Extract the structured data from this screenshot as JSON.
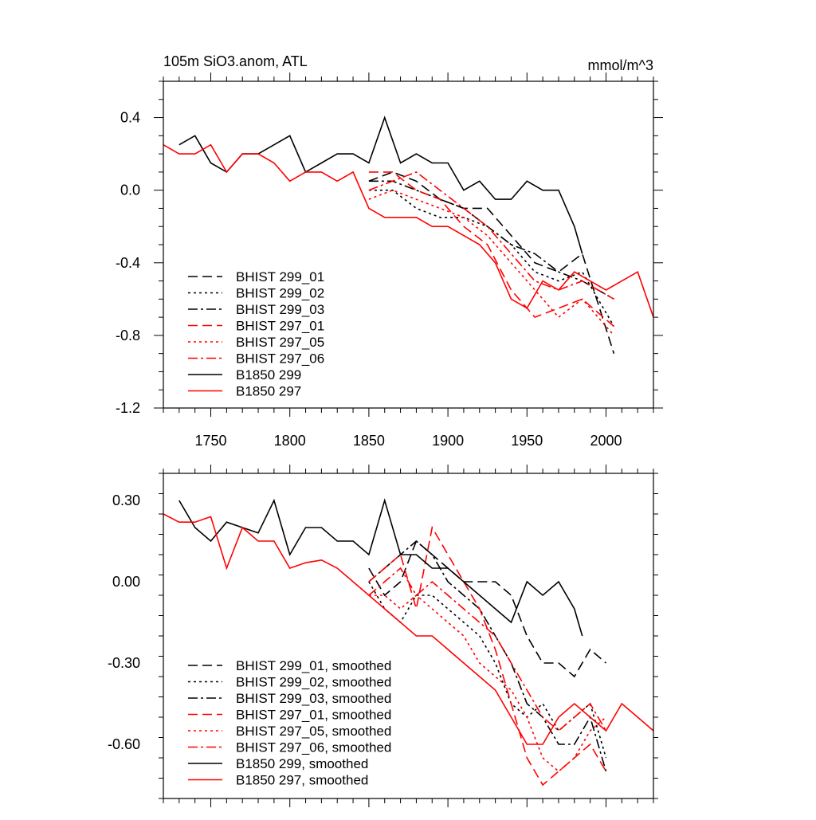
{
  "chart_data": [
    {
      "type": "line",
      "title_left": "105m SiO3.anom, ATL",
      "title_right": "mmol/m^3",
      "xlim": [
        1720,
        2030
      ],
      "ylim": [
        -1.2,
        0.6
      ],
      "xticks": [
        1750,
        1800,
        1850,
        1900,
        1950,
        2000
      ],
      "xtick_labels": [
        "1750",
        "1800",
        "1850",
        "1900",
        "1950",
        "2000"
      ],
      "yticks": [
        0.4,
        0.0,
        -0.4,
        -0.8,
        -1.2
      ],
      "ytick_labels": [
        "0.4",
        "0.0",
        "-0.4",
        "-0.8",
        "-1.2"
      ],
      "legend_position": "bottom-left",
      "series": [
        {
          "name": "BHIST 299_01",
          "color": "#000000",
          "dash": "dash",
          "x": [
            1850,
            1865,
            1880,
            1895,
            1910,
            1925,
            1940,
            1955,
            1970,
            1985,
            2005
          ],
          "y": [
            0.05,
            0.1,
            0.05,
            -0.05,
            -0.1,
            -0.1,
            -0.25,
            -0.4,
            -0.45,
            -0.35,
            -0.9
          ]
        },
        {
          "name": "BHIST 299_02",
          "color": "#000000",
          "dash": "dot",
          "x": [
            1850,
            1865,
            1880,
            1895,
            1910,
            1925,
            1940,
            1955,
            1970,
            1985,
            2005
          ],
          "y": [
            0.0,
            0.0,
            -0.1,
            -0.15,
            -0.15,
            -0.2,
            -0.3,
            -0.45,
            -0.5,
            -0.45,
            -0.75
          ]
        },
        {
          "name": "BHIST 299_03",
          "color": "#000000",
          "dash": "dashdot",
          "x": [
            1850,
            1865,
            1880,
            1895,
            1910,
            1925,
            1940,
            1955,
            1970,
            1985,
            2005
          ],
          "y": [
            0.05,
            0.05,
            0.0,
            -0.05,
            -0.1,
            -0.2,
            -0.3,
            -0.35,
            -0.45,
            -0.5,
            -0.6
          ]
        },
        {
          "name": "BHIST 297_01",
          "color": "#ff0000",
          "dash": "dash",
          "x": [
            1850,
            1865,
            1880,
            1895,
            1910,
            1925,
            1940,
            1955,
            1970,
            1985,
            2005
          ],
          "y": [
            0.1,
            0.1,
            0.0,
            -0.05,
            -0.2,
            -0.3,
            -0.55,
            -0.7,
            -0.65,
            -0.6,
            -0.75
          ]
        },
        {
          "name": "BHIST 297_05",
          "color": "#ff0000",
          "dash": "dot",
          "x": [
            1850,
            1865,
            1880,
            1895,
            1910,
            1925,
            1940,
            1955,
            1970,
            1985,
            2005
          ],
          "y": [
            -0.05,
            0.0,
            -0.05,
            -0.1,
            -0.15,
            -0.25,
            -0.4,
            -0.55,
            -0.7,
            -0.6,
            -0.8
          ]
        },
        {
          "name": "BHIST 297_06",
          "color": "#ff0000",
          "dash": "dashdot",
          "x": [
            1850,
            1865,
            1880,
            1895,
            1910,
            1925,
            1940,
            1955,
            1970,
            1985,
            2005
          ],
          "y": [
            0.0,
            0.05,
            0.1,
            0.0,
            -0.1,
            -0.2,
            -0.35,
            -0.5,
            -0.55,
            -0.5,
            -0.6
          ]
        },
        {
          "name": "B1850 299",
          "color": "#000000",
          "dash": "solid",
          "x": [
            1730,
            1740,
            1750,
            1760,
            1770,
            1780,
            1790,
            1800,
            1810,
            1820,
            1830,
            1840,
            1850,
            1860,
            1870,
            1880,
            1890,
            1900,
            1910,
            1920,
            1930,
            1940,
            1950,
            1960,
            1970,
            1980,
            1985
          ],
          "y": [
            0.25,
            0.3,
            0.15,
            0.1,
            0.2,
            0.2,
            0.25,
            0.3,
            0.1,
            0.15,
            0.2,
            0.2,
            0.15,
            0.4,
            0.15,
            0.2,
            0.15,
            0.15,
            0.0,
            0.05,
            -0.05,
            -0.05,
            0.05,
            0.0,
            0.0,
            -0.2,
            -0.35
          ]
        },
        {
          "name": "B1850 297",
          "color": "#ff0000",
          "dash": "solid",
          "x": [
            1720,
            1730,
            1740,
            1750,
            1760,
            1770,
            1780,
            1790,
            1800,
            1810,
            1820,
            1830,
            1840,
            1850,
            1860,
            1870,
            1880,
            1890,
            1900,
            1910,
            1920,
            1930,
            1940,
            1950,
            1960,
            1970,
            1980,
            1990,
            2000,
            2010,
            2020,
            2030
          ],
          "y": [
            0.25,
            0.2,
            0.2,
            0.25,
            0.1,
            0.2,
            0.2,
            0.15,
            0.05,
            0.1,
            0.1,
            0.05,
            0.1,
            -0.1,
            -0.15,
            -0.15,
            -0.15,
            -0.2,
            -0.2,
            -0.25,
            -0.3,
            -0.4,
            -0.6,
            -0.65,
            -0.5,
            -0.55,
            -0.45,
            -0.5,
            -0.55,
            -0.5,
            -0.45,
            -0.7
          ]
        }
      ]
    },
    {
      "type": "line",
      "xlim": [
        1720,
        2030
      ],
      "ylim": [
        -0.8,
        0.4
      ],
      "xticks": [
        1750,
        1800,
        1850,
        1900,
        1950,
        2000
      ],
      "yticks": [
        0.3,
        0.0,
        -0.3,
        -0.6
      ],
      "ytick_labels": [
        "0.30",
        "0.00",
        "-0.30",
        "-0.60"
      ],
      "legend_position": "bottom-left",
      "series": [
        {
          "name": "BHIST 299_01, smoothed",
          "color": "#000000",
          "dash": "dash",
          "x": [
            1850,
            1860,
            1870,
            1880,
            1890,
            1900,
            1910,
            1920,
            1930,
            1940,
            1950,
            1960,
            1970,
            1980,
            1990,
            2000
          ],
          "y": [
            0.05,
            -0.05,
            0.0,
            0.15,
            0.1,
            0.05,
            0.0,
            0.0,
            0.0,
            -0.05,
            -0.2,
            -0.3,
            -0.3,
            -0.35,
            -0.25,
            -0.3
          ]
        },
        {
          "name": "BHIST 299_02, smoothed",
          "color": "#000000",
          "dash": "dot",
          "x": [
            1850,
            1860,
            1870,
            1880,
            1890,
            1900,
            1910,
            1920,
            1930,
            1940,
            1950,
            1960,
            1970,
            1980,
            1990,
            2000
          ],
          "y": [
            0.0,
            -0.1,
            -0.15,
            -0.05,
            -0.05,
            -0.1,
            -0.15,
            -0.2,
            -0.3,
            -0.45,
            -0.5,
            -0.45,
            -0.55,
            -0.5,
            -0.45,
            -0.65
          ]
        },
        {
          "name": "BHIST 299_03, smoothed",
          "color": "#000000",
          "dash": "dashdot",
          "x": [
            1850,
            1860,
            1870,
            1880,
            1890,
            1900,
            1910,
            1920,
            1930,
            1940,
            1950,
            1960,
            1970,
            1980,
            1990,
            2000
          ],
          "y": [
            0.0,
            0.05,
            0.1,
            0.15,
            0.1,
            0.0,
            -0.05,
            -0.1,
            -0.2,
            -0.3,
            -0.45,
            -0.5,
            -0.6,
            -0.6,
            -0.5,
            -0.7
          ]
        },
        {
          "name": "BHIST 297_01, smoothed",
          "color": "#ff0000",
          "dash": "dash",
          "x": [
            1850,
            1860,
            1870,
            1880,
            1890,
            1900,
            1910,
            1920,
            1930,
            1940,
            1950,
            1960,
            1970,
            1980,
            1990,
            2000
          ],
          "y": [
            0.0,
            0.05,
            0.1,
            -0.1,
            0.2,
            0.1,
            0.0,
            -0.1,
            -0.25,
            -0.45,
            -0.65,
            -0.75,
            -0.7,
            -0.65,
            -0.6,
            -0.7
          ]
        },
        {
          "name": "BHIST 297_05, smoothed",
          "color": "#ff0000",
          "dash": "dot",
          "x": [
            1850,
            1860,
            1870,
            1880,
            1890,
            1900,
            1910,
            1920,
            1930,
            1940,
            1950,
            1960,
            1970,
            1980,
            1990,
            2000
          ],
          "y": [
            -0.05,
            -0.05,
            -0.1,
            -0.05,
            -0.1,
            -0.15,
            -0.2,
            -0.3,
            -0.35,
            -0.4,
            -0.5,
            -0.65,
            -0.7,
            -0.65,
            -0.55,
            -0.5
          ]
        },
        {
          "name": "BHIST 297_06, smoothed",
          "color": "#ff0000",
          "dash": "dashdot",
          "x": [
            1850,
            1860,
            1870,
            1880,
            1890,
            1900,
            1910,
            1920,
            1930,
            1940,
            1950,
            1960,
            1970,
            1980,
            1990,
            2000
          ],
          "y": [
            -0.05,
            0.0,
            0.05,
            -0.05,
            0.0,
            -0.05,
            -0.1,
            -0.15,
            -0.2,
            -0.3,
            -0.4,
            -0.5,
            -0.55,
            -0.5,
            -0.45,
            -0.55
          ]
        },
        {
          "name": "B1850 299, smoothed",
          "color": "#000000",
          "dash": "solid",
          "x": [
            1730,
            1740,
            1750,
            1760,
            1770,
            1780,
            1790,
            1800,
            1810,
            1820,
            1830,
            1840,
            1850,
            1860,
            1870,
            1880,
            1890,
            1900,
            1910,
            1920,
            1930,
            1940,
            1950,
            1960,
            1970,
            1980,
            1985
          ],
          "y": [
            0.3,
            0.2,
            0.15,
            0.22,
            0.2,
            0.18,
            0.3,
            0.1,
            0.2,
            0.2,
            0.15,
            0.15,
            0.1,
            0.3,
            0.1,
            0.1,
            0.05,
            0.05,
            0.0,
            -0.05,
            -0.1,
            -0.15,
            0.0,
            -0.05,
            0.0,
            -0.1,
            -0.2
          ]
        },
        {
          "name": "B1850 297, smoothed",
          "color": "#ff0000",
          "dash": "solid",
          "x": [
            1720,
            1730,
            1740,
            1750,
            1760,
            1770,
            1780,
            1790,
            1800,
            1810,
            1820,
            1830,
            1840,
            1850,
            1860,
            1870,
            1880,
            1890,
            1900,
            1910,
            1920,
            1930,
            1940,
            1950,
            1960,
            1970,
            1980,
            1990,
            2000,
            2010,
            2020,
            2030
          ],
          "y": [
            0.25,
            0.22,
            0.22,
            0.24,
            0.05,
            0.2,
            0.15,
            0.15,
            0.05,
            0.07,
            0.08,
            0.05,
            0.0,
            -0.05,
            -0.1,
            -0.15,
            -0.2,
            -0.2,
            -0.25,
            -0.3,
            -0.35,
            -0.4,
            -0.5,
            -0.6,
            -0.6,
            -0.5,
            -0.45,
            -0.5,
            -0.55,
            -0.45,
            -0.5,
            -0.55
          ]
        }
      ]
    }
  ]
}
